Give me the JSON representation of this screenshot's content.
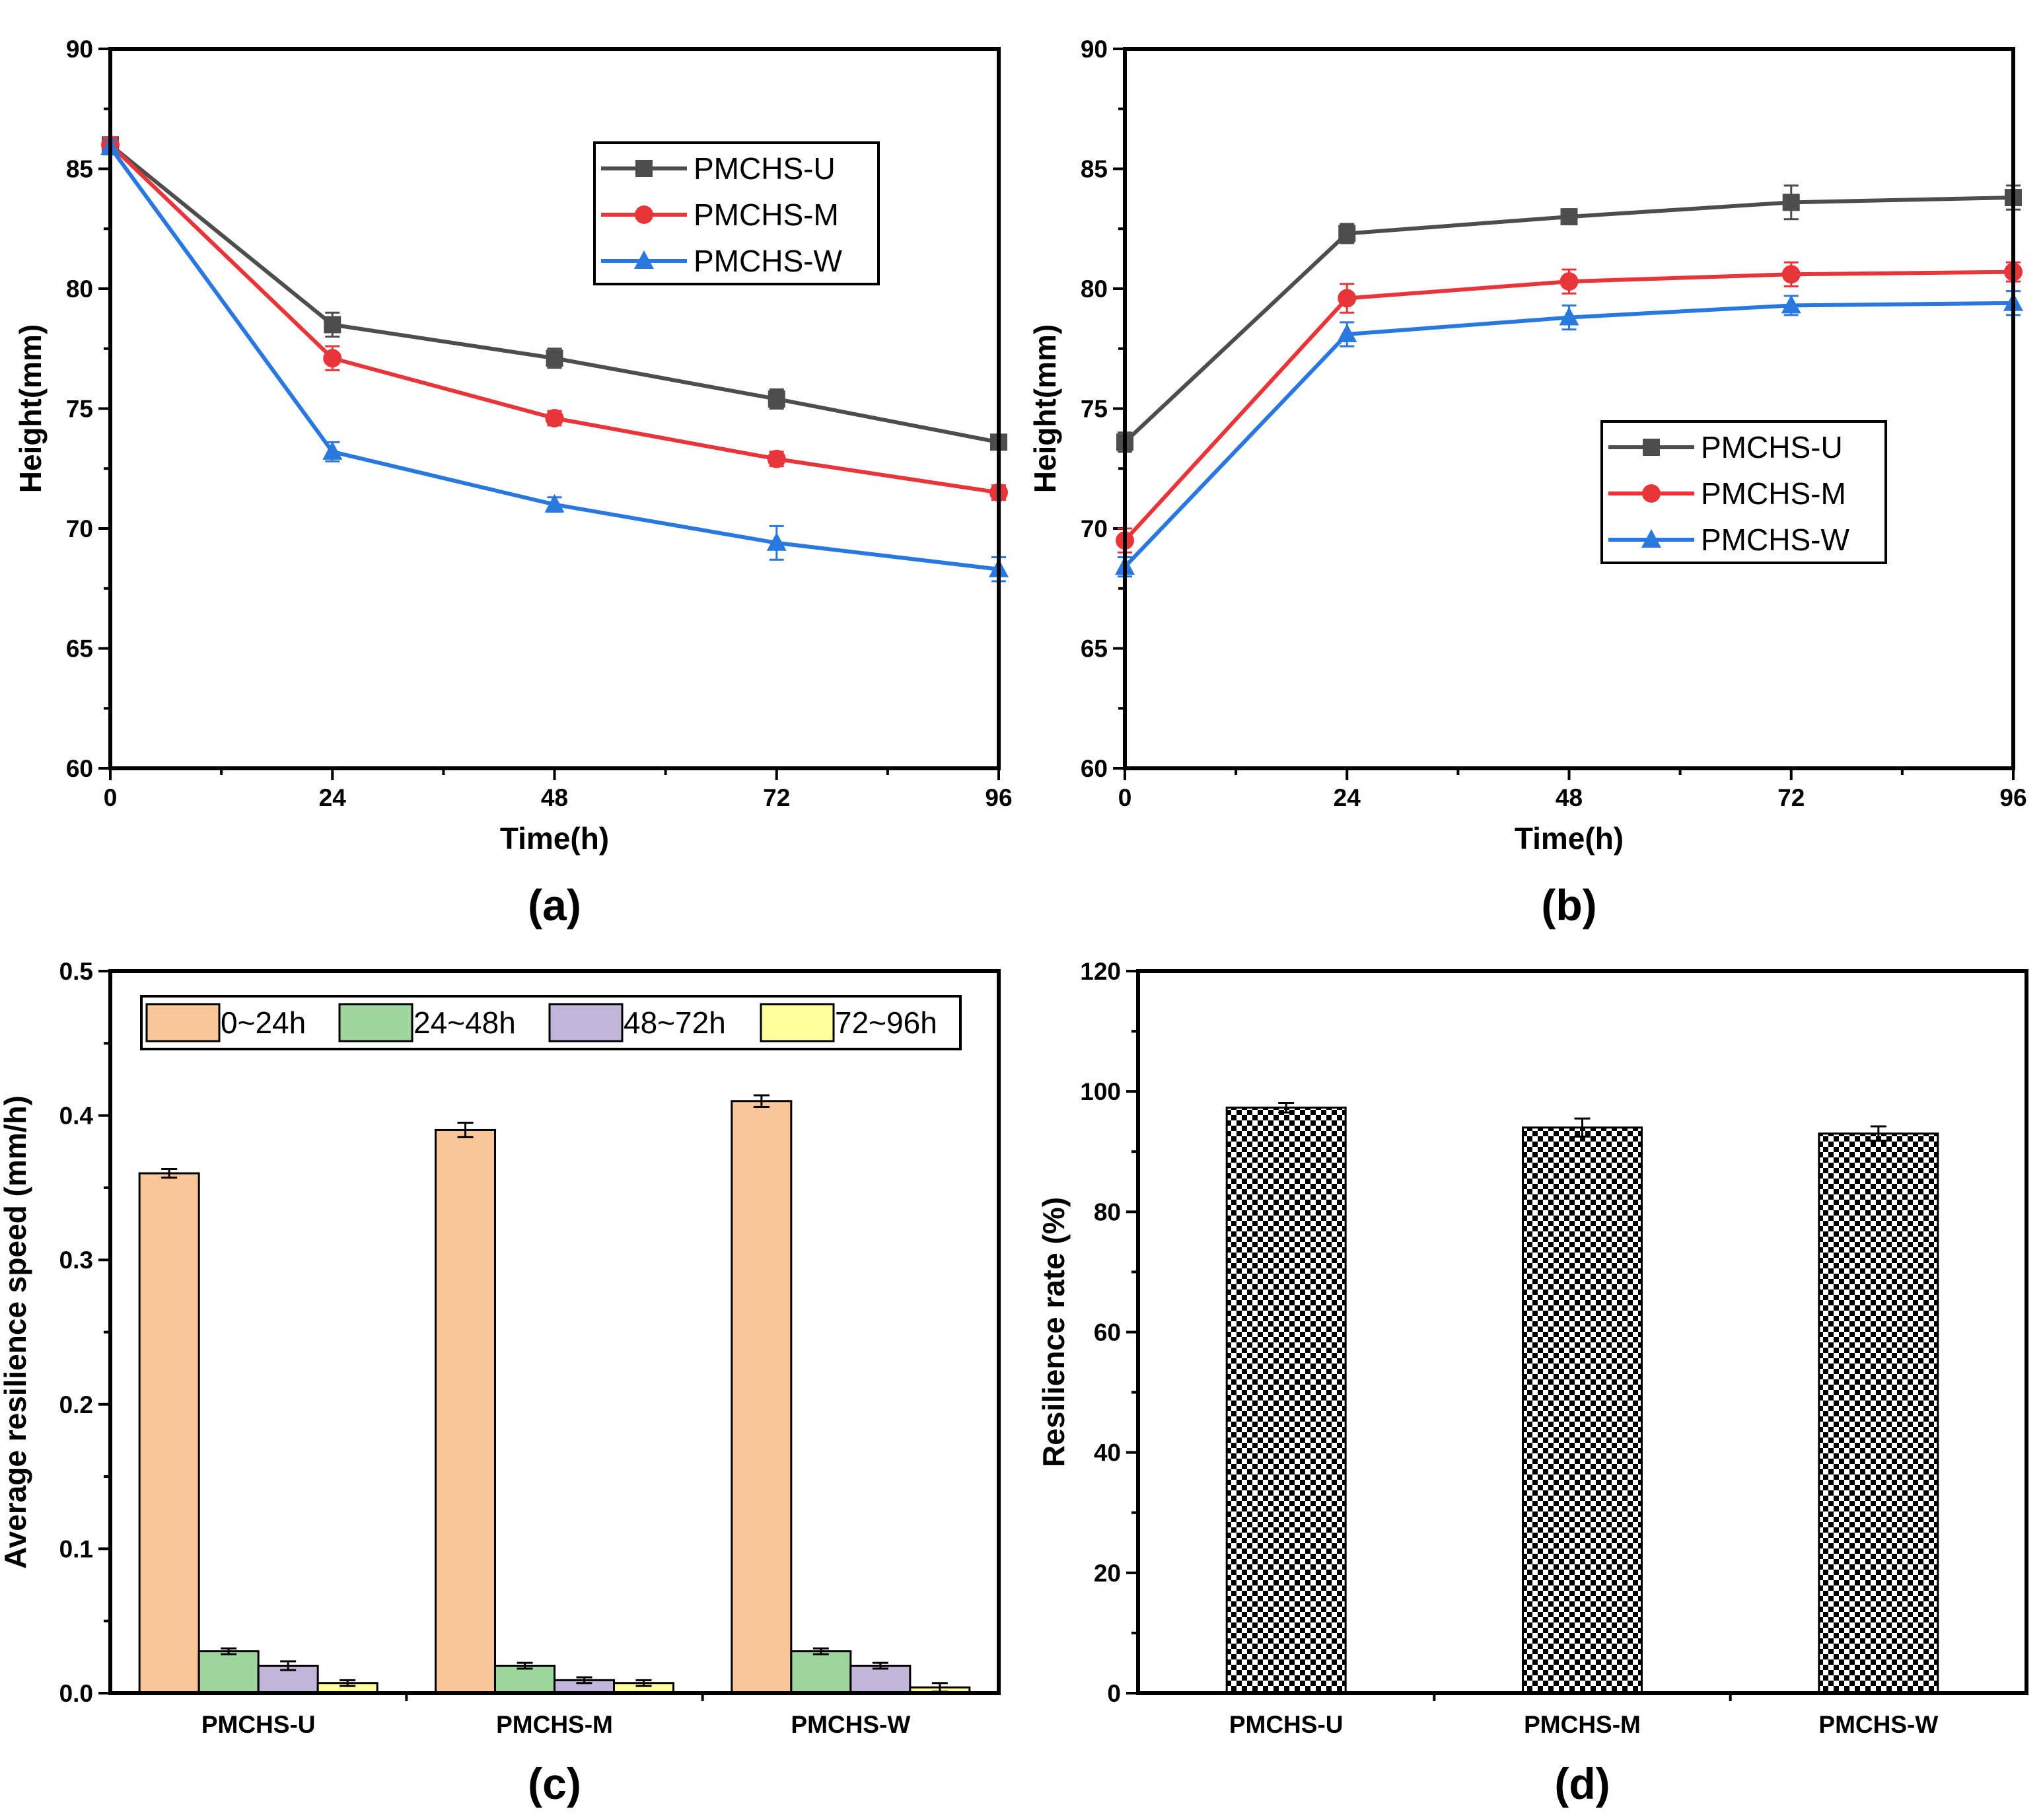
{
  "chart_data": [
    {
      "id": "a",
      "type": "line",
      "panel_label": "(a)",
      "xlabel": "Time(h)",
      "ylabel": "Height(mm)",
      "x": [
        0,
        24,
        48,
        72,
        96
      ],
      "x_ticks": [
        0,
        24,
        48,
        72,
        96
      ],
      "xlim": [
        0,
        96
      ],
      "ylim": [
        60,
        90
      ],
      "y_ticks": [
        60,
        65,
        70,
        75,
        80,
        85,
        90
      ],
      "grid": false,
      "legend_position": "top-right",
      "series": [
        {
          "name": "PMCHS-U",
          "color": "#4d4d4d",
          "marker": "square",
          "values": [
            86.0,
            78.5,
            77.1,
            75.4,
            73.6
          ],
          "errors": [
            0.3,
            0.5,
            0.4,
            0.4,
            0.2
          ]
        },
        {
          "name": "PMCHS-M",
          "color": "#e8353a",
          "marker": "circle",
          "values": [
            86.0,
            77.1,
            74.6,
            72.9,
            71.5
          ],
          "errors": [
            0.3,
            0.5,
            0.3,
            0.3,
            0.3
          ]
        },
        {
          "name": "PMCHS-W",
          "color": "#2878e0",
          "marker": "triangle",
          "values": [
            85.9,
            73.2,
            71.0,
            69.4,
            68.3
          ],
          "errors": [
            0.3,
            0.4,
            0.3,
            0.7,
            0.5
          ]
        }
      ]
    },
    {
      "id": "b",
      "type": "line",
      "panel_label": "(b)",
      "xlabel": "Time(h)",
      "ylabel": "Height(mm)",
      "x": [
        0,
        24,
        48,
        72,
        96
      ],
      "x_ticks": [
        0,
        24,
        48,
        72,
        96
      ],
      "xlim": [
        0,
        96
      ],
      "ylim": [
        60,
        90
      ],
      "y_ticks": [
        60,
        65,
        70,
        75,
        80,
        85,
        90
      ],
      "grid": false,
      "legend_position": "center-right",
      "series": [
        {
          "name": "PMCHS-U",
          "color": "#4d4d4d",
          "marker": "square",
          "values": [
            73.6,
            82.3,
            83.0,
            83.6,
            83.8
          ],
          "errors": [
            0.4,
            0.4,
            0.3,
            0.7,
            0.5
          ]
        },
        {
          "name": "PMCHS-M",
          "color": "#e8353a",
          "marker": "circle",
          "values": [
            69.5,
            79.6,
            80.3,
            80.6,
            80.7
          ],
          "errors": [
            0.5,
            0.6,
            0.5,
            0.5,
            0.4
          ]
        },
        {
          "name": "PMCHS-W",
          "color": "#2878e0",
          "marker": "triangle",
          "values": [
            68.4,
            78.1,
            78.8,
            79.3,
            79.4
          ],
          "errors": [
            0.4,
            0.5,
            0.5,
            0.4,
            0.5
          ]
        }
      ]
    },
    {
      "id": "c",
      "type": "bar",
      "panel_label": "(c)",
      "xlabel": "",
      "ylabel": "Average resilience speed (mm/h)",
      "categories": [
        "PMCHS-U",
        "PMCHS-M",
        "PMCHS-W"
      ],
      "ylim": [
        0.0,
        0.5
      ],
      "y_ticks": [
        0.0,
        0.1,
        0.2,
        0.3,
        0.4,
        0.5
      ],
      "y_tick_labels": [
        "0.0",
        "0.1",
        "0.2",
        "0.3",
        "0.4",
        "0.5"
      ],
      "grid": false,
      "legend_position": "top-left",
      "series": [
        {
          "name": "0~24h",
          "color": "#f9c699",
          "values": [
            0.36,
            0.39,
            0.41
          ],
          "errors": [
            0.003,
            0.005,
            0.004
          ]
        },
        {
          "name": "24~48h",
          "color": "#9ed59d",
          "values": [
            0.029,
            0.019,
            0.029
          ],
          "errors": [
            0.002,
            0.002,
            0.002
          ]
        },
        {
          "name": "48~72h",
          "color": "#c3b4da",
          "values": [
            0.019,
            0.009,
            0.019
          ],
          "errors": [
            0.003,
            0.002,
            0.002
          ]
        },
        {
          "name": "72~96h",
          "color": "#ffff9c",
          "values": [
            0.007,
            0.007,
            0.004
          ],
          "errors": [
            0.002,
            0.002,
            0.003
          ]
        }
      ]
    },
    {
      "id": "d",
      "type": "bar",
      "panel_label": "(d)",
      "xlabel": "",
      "ylabel": "Resilience rate (%)",
      "categories": [
        "PMCHS-U",
        "PMCHS-M",
        "PMCHS-W"
      ],
      "ylim": [
        0,
        120
      ],
      "y_ticks": [
        0,
        20,
        40,
        60,
        80,
        100,
        120
      ],
      "grid": false,
      "fill_pattern": "checkerboard",
      "series": [
        {
          "name": "Resilience rate",
          "values": [
            97.3,
            94.0,
            93.0
          ],
          "errors": [
            0.8,
            1.5,
            1.2
          ]
        }
      ]
    }
  ]
}
